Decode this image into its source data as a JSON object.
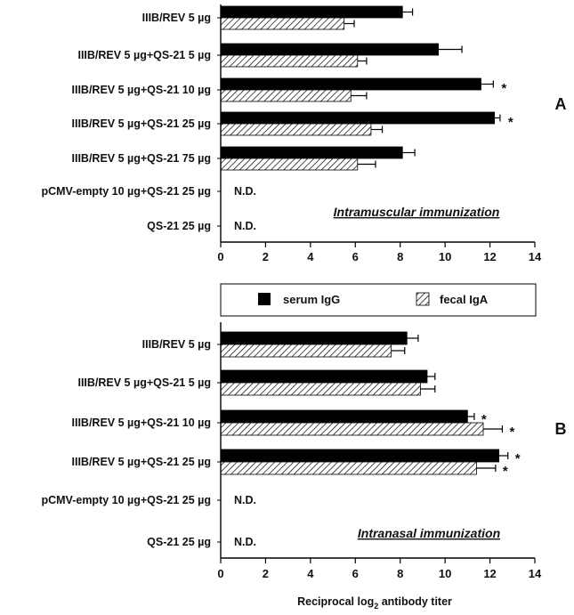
{
  "chart_data": [
    {
      "type": "bar",
      "panel_label": "A",
      "annotation": "Intramuscular immunization",
      "categories": [
        "IIIB/REV 5 µg",
        "IIIB/REV 5 µg+QS-21 5 µg",
        "IIIB/REV 5 µg+QS-21 10 µg",
        "IIIB/REV 5 µg+QS-21 25 µg",
        "IIIB/REV 5 µg+QS-21 75 µg",
        "pCMV-empty 10 µg+QS-21 25 µg",
        "QS-21 25 µg"
      ],
      "series": [
        {
          "name": "serum IgG",
          "color": "#000000",
          "pattern": "solid",
          "values": [
            8.1,
            9.7,
            11.6,
            12.2,
            8.1,
            null,
            null
          ],
          "errors": [
            0.45,
            1.05,
            0.55,
            0.25,
            0.55,
            null,
            null
          ]
        },
        {
          "name": "fecal IgA",
          "color": "#000000",
          "pattern": "hatched",
          "values": [
            5.5,
            6.1,
            5.8,
            6.7,
            6.1,
            null,
            null
          ],
          "errors": [
            0.45,
            0.4,
            0.7,
            0.5,
            0.8,
            null,
            null
          ]
        }
      ],
      "significance": [
        null,
        null,
        "*",
        "*",
        null,
        null,
        null
      ],
      "not_determined": [
        null,
        null,
        null,
        null,
        null,
        "N.D.",
        "N.D."
      ],
      "xlim": [
        0,
        14
      ],
      "xticks": [
        "0",
        "2",
        "4",
        "6",
        "8",
        "10",
        "12",
        "14"
      ],
      "grid": false
    },
    {
      "type": "bar",
      "panel_label": "B",
      "annotation": "Intranasal immunization",
      "categories": [
        "IIIB/REV 5 µg",
        "IIIB/REV 5 µg+QS-21 5 µg",
        "IIIB/REV 5 µg+QS-21 10 µg",
        "IIIB/REV 5 µg+QS-21 25 µg",
        "pCMV-empty 10 µg+QS-21 25 µg",
        "QS-21 25 µg"
      ],
      "series": [
        {
          "name": "serum IgG",
          "color": "#000000",
          "pattern": "solid",
          "values": [
            8.3,
            9.2,
            11.0,
            12.4,
            null,
            null
          ],
          "errors": [
            0.5,
            0.35,
            0.3,
            0.4,
            null,
            null
          ]
        },
        {
          "name": "fecal IgA",
          "color": "#000000",
          "pattern": "hatched",
          "values": [
            7.6,
            8.9,
            11.7,
            11.4,
            null,
            null
          ],
          "errors": [
            0.6,
            0.65,
            0.85,
            0.85,
            null,
            null
          ]
        }
      ],
      "significance": [
        null,
        null,
        "*",
        "*",
        null,
        null
      ],
      "significance_fecal": [
        null,
        null,
        "*",
        "*",
        null,
        null
      ],
      "not_determined": [
        null,
        null,
        null,
        null,
        "N.D.",
        "N.D."
      ],
      "xlim": [
        0,
        14
      ],
      "xticks": [
        "0",
        "2",
        "4",
        "6",
        "8",
        "10",
        "12",
        "14"
      ],
      "xlabel_parts": [
        "Reciprocal log",
        "2",
        " antibody titer"
      ],
      "grid": false
    }
  ],
  "legend": {
    "position": "between-panels",
    "items": [
      {
        "label": "serum IgG",
        "pattern": "solid"
      },
      {
        "label": "fecal IgA",
        "pattern": "hatched"
      }
    ]
  }
}
